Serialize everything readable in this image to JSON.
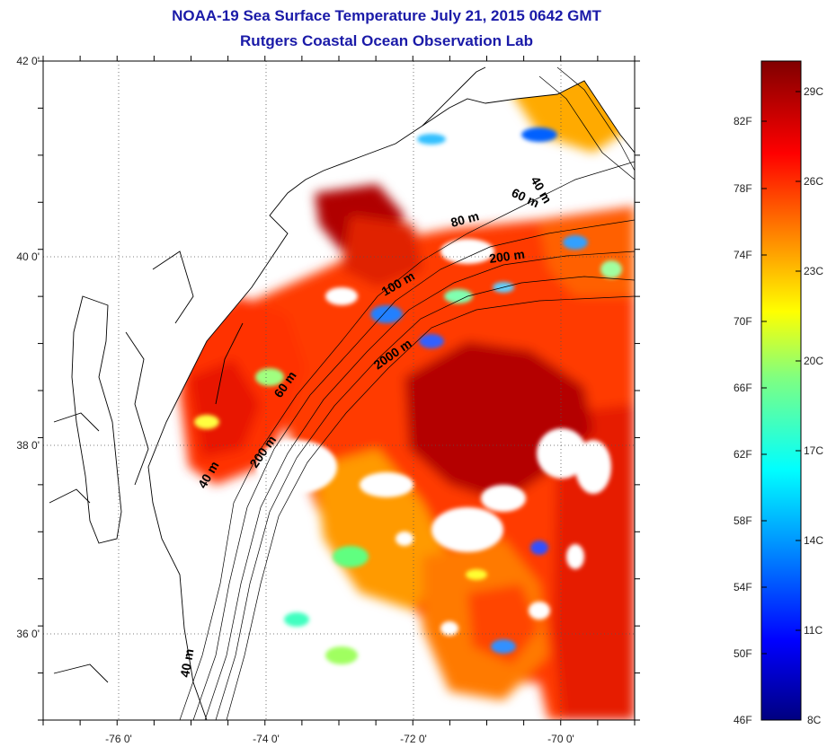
{
  "title": "NOAA-19 Sea Surface Temperature July 21, 2015 0642 GMT",
  "subtitle": "Rutgers Coastal Ocean Observation Lab",
  "map": {
    "lat_labels": [
      "42 0'",
      "40 0'",
      "38 0'",
      "36 0'"
    ],
    "lon_labels": [
      "-76 0'",
      "-74 0'",
      "-72 0'",
      "-70 0'"
    ],
    "lat_range": [
      35.0,
      42.0
    ],
    "lon_range": [
      -77.0,
      -69.0
    ],
    "gridlines": "dotted",
    "isobath_labels": [
      "40 m",
      "60 m",
      "80 m",
      "100 m",
      "200 m",
      "2000 m",
      "60 m",
      "200 m",
      "40 m",
      "40 m"
    ]
  },
  "colorbar": {
    "fahrenheit_labels": [
      "82F",
      "78F",
      "74F",
      "70F",
      "66F",
      "62F",
      "58F",
      "54F",
      "50F",
      "46F"
    ],
    "celsius_labels": [
      "29C",
      "26C",
      "23C",
      "20C",
      "17C",
      "14C",
      "11C",
      "8C"
    ],
    "range_c": [
      8,
      30
    ],
    "colors": [
      "#000080",
      "#0000ff",
      "#00a0ff",
      "#00ffff",
      "#80ff80",
      "#ffff00",
      "#ff8000",
      "#ff0000",
      "#800000"
    ]
  }
}
